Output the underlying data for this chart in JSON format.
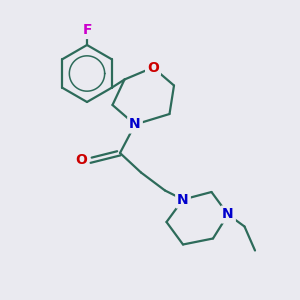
{
  "bg_color": "#eaeaf0",
  "bond_color": "#2d6b5a",
  "N_color": "#0000cc",
  "O_color": "#cc0000",
  "F_color": "#cc00cc",
  "bond_width": 1.6,
  "font_size": 10,
  "fig_w": 3.0,
  "fig_h": 3.0,
  "dpi": 100,
  "xlim": [
    0,
    10
  ],
  "ylim": [
    0,
    10
  ]
}
